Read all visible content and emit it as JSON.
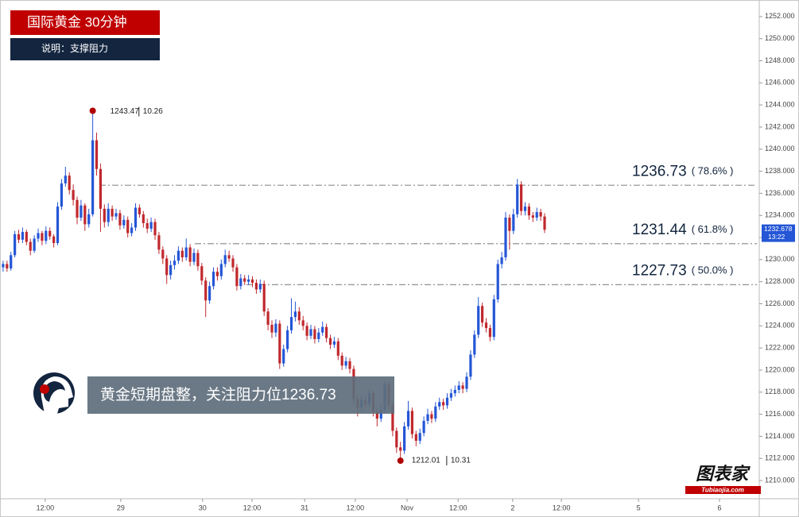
{
  "chart_data": {
    "type": "candlestick",
    "title": "国际黄金 30分钟",
    "subtitle": "说明：支撑阻力",
    "callout": "黄金短期盘整，关注阻力位1236.73",
    "brand": "图表家",
    "brand_url": "Tubiaojia.com",
    "up_color": "#2456d6",
    "down_color": "#c0282d",
    "ylim": [
      1208.35,
      1253.5
    ],
    "yticks": [
      {
        "value": 1210,
        "label": "1210.000"
      },
      {
        "value": 1212,
        "label": "1212.000"
      },
      {
        "value": 1214,
        "label": "1214.000"
      },
      {
        "value": 1216,
        "label": "1216.000"
      },
      {
        "value": 1218,
        "label": "1218.000"
      },
      {
        "value": 1220,
        "label": "1220.000"
      },
      {
        "value": 1222,
        "label": "1222.000"
      },
      {
        "value": 1224,
        "label": "1224.000"
      },
      {
        "value": 1226,
        "label": "1226.000"
      },
      {
        "value": 1228,
        "label": "1228.000"
      },
      {
        "value": 1230,
        "label": "1230.000"
      },
      {
        "value": 1232,
        "label": "1232.000"
      },
      {
        "value": 1234,
        "label": "1234.000"
      },
      {
        "value": 1236,
        "label": "1236.000"
      },
      {
        "value": 1238,
        "label": "1238.000"
      },
      {
        "value": 1240,
        "label": "1240.000"
      },
      {
        "value": 1242,
        "label": "1242.000"
      },
      {
        "value": 1244,
        "label": "1244.000"
      },
      {
        "value": 1246,
        "label": "1246.000"
      },
      {
        "value": 1248,
        "label": "1248.000"
      },
      {
        "value": 1250,
        "label": "1250.000"
      },
      {
        "value": 1252,
        "label": "1252.000"
      }
    ],
    "xlim": [
      -0.8,
      194.1
    ],
    "xticks": [
      {
        "value": 10.8,
        "label": "12:00"
      },
      {
        "value": 30.2,
        "label": "29"
      },
      {
        "value": 51.2,
        "label": "30"
      },
      {
        "value": 63.9,
        "label": "12:00"
      },
      {
        "value": 77.4,
        "label": "31"
      },
      {
        "value": 90.4,
        "label": "12:00"
      },
      {
        "value": 103.7,
        "label": "Nov"
      },
      {
        "value": 116.8,
        "label": "12:00"
      },
      {
        "value": 130.8,
        "label": "2"
      },
      {
        "value": 143.3,
        "label": "12:00"
      },
      {
        "value": 163.1,
        "label": "5"
      },
      {
        "value": 183.9,
        "label": "6"
      }
    ],
    "last_price": 1232.678,
    "last_time": "13:22",
    "levels": [
      {
        "value": 1236.73,
        "label": "( 78.6% )"
      },
      {
        "value": 1231.44,
        "label": "( 61.8% )"
      },
      {
        "value": 1227.73,
        "label": "( 50.0% )"
      }
    ],
    "annotations": [
      {
        "value": 1243.47,
        "date": "10.26"
      },
      {
        "value": 1212.01,
        "date": "10.31"
      }
    ],
    "ohlc": [
      [
        1229.3,
        1229.9,
        1228.9,
        1229.6
      ],
      [
        1229.6,
        1229.9,
        1228.9,
        1229.2
      ],
      [
        1229.2,
        1230.7,
        1229.0,
        1230.4
      ],
      [
        1230.4,
        1232.6,
        1230.2,
        1232.3
      ],
      [
        1232.3,
        1232.7,
        1231.5,
        1231.8
      ],
      [
        1231.8,
        1232.9,
        1231.5,
        1232.5
      ],
      [
        1232.5,
        1232.7,
        1231.3,
        1231.6
      ],
      [
        1231.6,
        1231.9,
        1230.4,
        1230.8
      ],
      [
        1230.8,
        1232.2,
        1230.6,
        1231.9
      ],
      [
        1231.9,
        1232.8,
        1231.6,
        1232.4
      ],
      [
        1232.4,
        1232.6,
        1231.3,
        1231.7
      ],
      [
        1231.7,
        1233.0,
        1231.4,
        1232.6
      ],
      [
        1232.6,
        1232.9,
        1231.8,
        1232.1
      ],
      [
        1232.1,
        1232.3,
        1231.1,
        1231.5
      ],
      [
        1231.5,
        1235.2,
        1231.3,
        1234.8
      ],
      [
        1234.8,
        1237.3,
        1234.5,
        1236.9
      ],
      [
        1236.9,
        1238.4,
        1236.6,
        1237.6
      ],
      [
        1237.6,
        1237.9,
        1235.9,
        1236.3
      ],
      [
        1236.3,
        1236.8,
        1234.9,
        1235.4
      ],
      [
        1235.4,
        1235.7,
        1233.2,
        1233.8
      ],
      [
        1233.8,
        1235.4,
        1233.5,
        1234.9
      ],
      [
        1234.9,
        1235.1,
        1232.6,
        1233.2
      ],
      [
        1233.2,
        1234.6,
        1232.9,
        1234.1
      ],
      [
        1234.1,
        1243.47,
        1233.9,
        1240.8
      ],
      [
        1240.8,
        1241.5,
        1237.6,
        1238.2
      ],
      [
        1238.2,
        1238.7,
        1232.5,
        1234.6
      ],
      [
        1234.6,
        1235.0,
        1232.9,
        1233.4
      ],
      [
        1233.4,
        1235.1,
        1233.0,
        1234.6
      ],
      [
        1234.6,
        1234.9,
        1233.5,
        1233.9
      ],
      [
        1233.9,
        1234.6,
        1233.6,
        1234.2
      ],
      [
        1234.2,
        1234.5,
        1232.7,
        1233.1
      ],
      [
        1233.1,
        1234.0,
        1232.8,
        1233.6
      ],
      [
        1233.6,
        1233.9,
        1232.0,
        1232.4
      ],
      [
        1232.4,
        1233.3,
        1232.1,
        1232.9
      ],
      [
        1232.9,
        1235.1,
        1232.6,
        1234.7
      ],
      [
        1234.7,
        1235.0,
        1233.8,
        1234.1
      ],
      [
        1234.1,
        1234.4,
        1232.9,
        1233.3
      ],
      [
        1233.3,
        1233.7,
        1232.4,
        1232.8
      ],
      [
        1232.8,
        1233.8,
        1232.5,
        1233.4
      ],
      [
        1233.4,
        1233.7,
        1231.8,
        1232.2
      ],
      [
        1232.2,
        1232.5,
        1230.5,
        1230.9
      ],
      [
        1230.9,
        1231.2,
        1229.6,
        1230.1
      ],
      [
        1230.1,
        1230.4,
        1227.8,
        1228.6
      ],
      [
        1228.6,
        1229.9,
        1228.2,
        1229.5
      ],
      [
        1229.5,
        1230.4,
        1229.1,
        1229.9
      ],
      [
        1229.9,
        1231.2,
        1229.6,
        1230.8
      ],
      [
        1230.8,
        1231.1,
        1229.8,
        1230.2
      ],
      [
        1230.2,
        1231.9,
        1229.9,
        1231.1
      ],
      [
        1231.1,
        1231.4,
        1229.4,
        1229.8
      ],
      [
        1229.8,
        1231.0,
        1229.5,
        1230.6
      ],
      [
        1230.6,
        1230.9,
        1229.0,
        1229.4
      ],
      [
        1229.4,
        1229.7,
        1227.7,
        1228.1
      ],
      [
        1228.1,
        1228.4,
        1224.8,
        1226.3
      ],
      [
        1226.3,
        1228.0,
        1226.0,
        1227.6
      ],
      [
        1227.6,
        1229.3,
        1227.3,
        1228.9
      ],
      [
        1228.9,
        1229.3,
        1228.1,
        1228.5
      ],
      [
        1228.5,
        1230.0,
        1228.2,
        1229.6
      ],
      [
        1229.6,
        1230.9,
        1229.3,
        1230.4
      ],
      [
        1230.4,
        1230.8,
        1229.8,
        1230.1
      ],
      [
        1230.1,
        1230.4,
        1228.9,
        1229.3
      ],
      [
        1229.3,
        1229.6,
        1227.2,
        1227.6
      ],
      [
        1227.6,
        1228.7,
        1227.3,
        1228.3
      ],
      [
        1228.3,
        1228.6,
        1227.7,
        1228.0
      ],
      [
        1228.0,
        1228.6,
        1227.7,
        1228.2
      ],
      [
        1228.2,
        1228.5,
        1227.5,
        1227.9
      ],
      [
        1227.9,
        1228.2,
        1226.9,
        1227.3
      ],
      [
        1227.3,
        1228.2,
        1227.0,
        1227.8
      ],
      [
        1227.8,
        1228.1,
        1224.9,
        1225.3
      ],
      [
        1225.3,
        1225.6,
        1223.6,
        1224.1
      ],
      [
        1224.1,
        1224.5,
        1222.9,
        1223.4
      ],
      [
        1223.4,
        1224.6,
        1223.0,
        1224.2
      ],
      [
        1224.2,
        1224.5,
        1220.1,
        1220.6
      ],
      [
        1220.6,
        1222.3,
        1220.3,
        1221.9
      ],
      [
        1221.9,
        1224.0,
        1221.6,
        1223.6
      ],
      [
        1223.6,
        1226.5,
        1223.3,
        1224.8
      ],
      [
        1224.8,
        1226.2,
        1224.4,
        1225.3
      ],
      [
        1225.3,
        1225.7,
        1224.1,
        1224.5
      ],
      [
        1224.5,
        1224.9,
        1223.6,
        1224.0
      ],
      [
        1224.0,
        1224.3,
        1222.7,
        1223.1
      ],
      [
        1223.1,
        1224.1,
        1222.8,
        1223.7
      ],
      [
        1223.7,
        1224.0,
        1222.4,
        1222.8
      ],
      [
        1222.8,
        1223.8,
        1222.5,
        1223.4
      ],
      [
        1223.4,
        1224.4,
        1223.1,
        1223.9
      ],
      [
        1223.9,
        1224.2,
        1222.5,
        1222.9
      ],
      [
        1222.9,
        1223.2,
        1221.9,
        1222.3
      ],
      [
        1222.3,
        1223.0,
        1222.0,
        1222.6
      ],
      [
        1222.6,
        1222.9,
        1220.9,
        1221.3
      ],
      [
        1221.3,
        1221.6,
        1220.0,
        1220.4
      ],
      [
        1220.4,
        1221.2,
        1220.1,
        1220.8
      ],
      [
        1220.8,
        1221.1,
        1219.7,
        1220.1
      ],
      [
        1220.1,
        1220.4,
        1216.9,
        1217.4
      ],
      [
        1217.4,
        1217.8,
        1215.8,
        1216.6
      ],
      [
        1216.6,
        1217.7,
        1216.3,
        1217.3
      ],
      [
        1217.3,
        1217.6,
        1216.5,
        1216.9
      ],
      [
        1216.9,
        1218.3,
        1216.6,
        1217.9
      ],
      [
        1217.9,
        1218.2,
        1215.8,
        1216.2
      ],
      [
        1216.2,
        1216.5,
        1214.9,
        1215.6
      ],
      [
        1215.6,
        1216.8,
        1215.3,
        1216.4
      ],
      [
        1216.4,
        1219.0,
        1216.1,
        1218.7
      ],
      [
        1218.7,
        1219.0,
        1216.4,
        1216.8
      ],
      [
        1216.8,
        1217.1,
        1214.0,
        1214.5
      ],
      [
        1214.5,
        1214.8,
        1212.5,
        1213.0
      ],
      [
        1213.0,
        1213.5,
        1212.01,
        1212.7
      ],
      [
        1212.7,
        1215.3,
        1212.4,
        1214.9
      ],
      [
        1214.9,
        1217.2,
        1214.6,
        1216.3
      ],
      [
        1216.3,
        1216.6,
        1213.8,
        1214.2
      ],
      [
        1214.2,
        1214.5,
        1213.1,
        1213.6
      ],
      [
        1213.6,
        1214.7,
        1213.3,
        1214.3
      ],
      [
        1214.3,
        1215.8,
        1214.0,
        1215.4
      ],
      [
        1215.4,
        1216.5,
        1215.1,
        1216.0
      ],
      [
        1216.0,
        1216.3,
        1215.2,
        1215.6
      ],
      [
        1215.6,
        1217.1,
        1215.3,
        1216.7
      ],
      [
        1216.7,
        1217.5,
        1216.4,
        1217.1
      ],
      [
        1217.1,
        1217.4,
        1216.4,
        1216.8
      ],
      [
        1216.8,
        1217.9,
        1216.5,
        1217.5
      ],
      [
        1217.5,
        1218.3,
        1217.2,
        1217.9
      ],
      [
        1217.9,
        1218.6,
        1217.6,
        1218.2
      ],
      [
        1218.2,
        1219.0,
        1217.9,
        1218.6
      ],
      [
        1218.6,
        1218.9,
        1217.9,
        1218.3
      ],
      [
        1218.3,
        1219.8,
        1218.0,
        1219.4
      ],
      [
        1219.4,
        1221.8,
        1219.1,
        1221.4
      ],
      [
        1221.4,
        1223.6,
        1221.1,
        1223.2
      ],
      [
        1223.2,
        1226.6,
        1222.9,
        1225.8
      ],
      [
        1225.8,
        1226.1,
        1223.9,
        1224.3
      ],
      [
        1224.3,
        1224.7,
        1223.4,
        1223.8
      ],
      [
        1223.8,
        1224.1,
        1222.6,
        1223.0
      ],
      [
        1223.0,
        1226.8,
        1222.7,
        1226.4
      ],
      [
        1226.4,
        1230.0,
        1226.1,
        1229.6
      ],
      [
        1229.6,
        1230.7,
        1229.2,
        1230.2
      ],
      [
        1230.2,
        1234.3,
        1229.9,
        1233.8
      ],
      [
        1233.8,
        1234.1,
        1230.9,
        1232.6
      ],
      [
        1232.6,
        1234.6,
        1232.3,
        1234.1
      ],
      [
        1234.1,
        1237.3,
        1233.8,
        1236.8
      ],
      [
        1236.8,
        1237.1,
        1234.0,
        1234.4
      ],
      [
        1234.4,
        1235.2,
        1234.0,
        1234.8
      ],
      [
        1234.8,
        1235.1,
        1233.6,
        1234.0
      ],
      [
        1234.0,
        1234.3,
        1233.4,
        1233.8
      ],
      [
        1233.8,
        1234.7,
        1233.5,
        1234.3
      ],
      [
        1234.3,
        1234.6,
        1233.5,
        1233.9
      ],
      [
        1233.9,
        1234.2,
        1232.4,
        1232.7
      ]
    ]
  }
}
